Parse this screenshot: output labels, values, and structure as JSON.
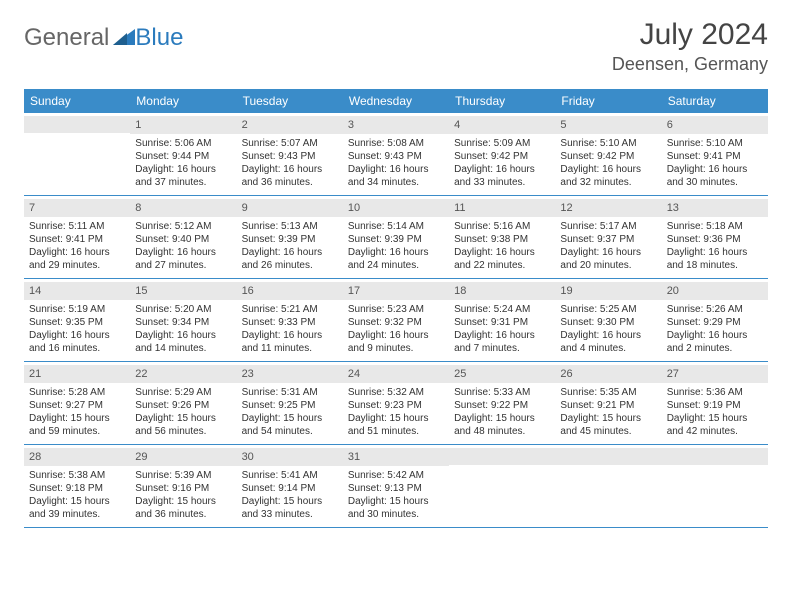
{
  "brand": {
    "part1": "General",
    "part2": "Blue"
  },
  "title": "July 2024",
  "location": "Deensen, Germany",
  "header_bg": "#3a8cc9",
  "day_names": [
    "Sunday",
    "Monday",
    "Tuesday",
    "Wednesday",
    "Thursday",
    "Friday",
    "Saturday"
  ],
  "weeks": [
    [
      {
        "day": "",
        "sunrise": "",
        "sunset": "",
        "daylight": ""
      },
      {
        "day": "1",
        "sunrise": "Sunrise: 5:06 AM",
        "sunset": "Sunset: 9:44 PM",
        "daylight": "Daylight: 16 hours and 37 minutes."
      },
      {
        "day": "2",
        "sunrise": "Sunrise: 5:07 AM",
        "sunset": "Sunset: 9:43 PM",
        "daylight": "Daylight: 16 hours and 36 minutes."
      },
      {
        "day": "3",
        "sunrise": "Sunrise: 5:08 AM",
        "sunset": "Sunset: 9:43 PM",
        "daylight": "Daylight: 16 hours and 34 minutes."
      },
      {
        "day": "4",
        "sunrise": "Sunrise: 5:09 AM",
        "sunset": "Sunset: 9:42 PM",
        "daylight": "Daylight: 16 hours and 33 minutes."
      },
      {
        "day": "5",
        "sunrise": "Sunrise: 5:10 AM",
        "sunset": "Sunset: 9:42 PM",
        "daylight": "Daylight: 16 hours and 32 minutes."
      },
      {
        "day": "6",
        "sunrise": "Sunrise: 5:10 AM",
        "sunset": "Sunset: 9:41 PM",
        "daylight": "Daylight: 16 hours and 30 minutes."
      }
    ],
    [
      {
        "day": "7",
        "sunrise": "Sunrise: 5:11 AM",
        "sunset": "Sunset: 9:41 PM",
        "daylight": "Daylight: 16 hours and 29 minutes."
      },
      {
        "day": "8",
        "sunrise": "Sunrise: 5:12 AM",
        "sunset": "Sunset: 9:40 PM",
        "daylight": "Daylight: 16 hours and 27 minutes."
      },
      {
        "day": "9",
        "sunrise": "Sunrise: 5:13 AM",
        "sunset": "Sunset: 9:39 PM",
        "daylight": "Daylight: 16 hours and 26 minutes."
      },
      {
        "day": "10",
        "sunrise": "Sunrise: 5:14 AM",
        "sunset": "Sunset: 9:39 PM",
        "daylight": "Daylight: 16 hours and 24 minutes."
      },
      {
        "day": "11",
        "sunrise": "Sunrise: 5:16 AM",
        "sunset": "Sunset: 9:38 PM",
        "daylight": "Daylight: 16 hours and 22 minutes."
      },
      {
        "day": "12",
        "sunrise": "Sunrise: 5:17 AM",
        "sunset": "Sunset: 9:37 PM",
        "daylight": "Daylight: 16 hours and 20 minutes."
      },
      {
        "day": "13",
        "sunrise": "Sunrise: 5:18 AM",
        "sunset": "Sunset: 9:36 PM",
        "daylight": "Daylight: 16 hours and 18 minutes."
      }
    ],
    [
      {
        "day": "14",
        "sunrise": "Sunrise: 5:19 AM",
        "sunset": "Sunset: 9:35 PM",
        "daylight": "Daylight: 16 hours and 16 minutes."
      },
      {
        "day": "15",
        "sunrise": "Sunrise: 5:20 AM",
        "sunset": "Sunset: 9:34 PM",
        "daylight": "Daylight: 16 hours and 14 minutes."
      },
      {
        "day": "16",
        "sunrise": "Sunrise: 5:21 AM",
        "sunset": "Sunset: 9:33 PM",
        "daylight": "Daylight: 16 hours and 11 minutes."
      },
      {
        "day": "17",
        "sunrise": "Sunrise: 5:23 AM",
        "sunset": "Sunset: 9:32 PM",
        "daylight": "Daylight: 16 hours and 9 minutes."
      },
      {
        "day": "18",
        "sunrise": "Sunrise: 5:24 AM",
        "sunset": "Sunset: 9:31 PM",
        "daylight": "Daylight: 16 hours and 7 minutes."
      },
      {
        "day": "19",
        "sunrise": "Sunrise: 5:25 AM",
        "sunset": "Sunset: 9:30 PM",
        "daylight": "Daylight: 16 hours and 4 minutes."
      },
      {
        "day": "20",
        "sunrise": "Sunrise: 5:26 AM",
        "sunset": "Sunset: 9:29 PM",
        "daylight": "Daylight: 16 hours and 2 minutes."
      }
    ],
    [
      {
        "day": "21",
        "sunrise": "Sunrise: 5:28 AM",
        "sunset": "Sunset: 9:27 PM",
        "daylight": "Daylight: 15 hours and 59 minutes."
      },
      {
        "day": "22",
        "sunrise": "Sunrise: 5:29 AM",
        "sunset": "Sunset: 9:26 PM",
        "daylight": "Daylight: 15 hours and 56 minutes."
      },
      {
        "day": "23",
        "sunrise": "Sunrise: 5:31 AM",
        "sunset": "Sunset: 9:25 PM",
        "daylight": "Daylight: 15 hours and 54 minutes."
      },
      {
        "day": "24",
        "sunrise": "Sunrise: 5:32 AM",
        "sunset": "Sunset: 9:23 PM",
        "daylight": "Daylight: 15 hours and 51 minutes."
      },
      {
        "day": "25",
        "sunrise": "Sunrise: 5:33 AM",
        "sunset": "Sunset: 9:22 PM",
        "daylight": "Daylight: 15 hours and 48 minutes."
      },
      {
        "day": "26",
        "sunrise": "Sunrise: 5:35 AM",
        "sunset": "Sunset: 9:21 PM",
        "daylight": "Daylight: 15 hours and 45 minutes."
      },
      {
        "day": "27",
        "sunrise": "Sunrise: 5:36 AM",
        "sunset": "Sunset: 9:19 PM",
        "daylight": "Daylight: 15 hours and 42 minutes."
      }
    ],
    [
      {
        "day": "28",
        "sunrise": "Sunrise: 5:38 AM",
        "sunset": "Sunset: 9:18 PM",
        "daylight": "Daylight: 15 hours and 39 minutes."
      },
      {
        "day": "29",
        "sunrise": "Sunrise: 5:39 AM",
        "sunset": "Sunset: 9:16 PM",
        "daylight": "Daylight: 15 hours and 36 minutes."
      },
      {
        "day": "30",
        "sunrise": "Sunrise: 5:41 AM",
        "sunset": "Sunset: 9:14 PM",
        "daylight": "Daylight: 15 hours and 33 minutes."
      },
      {
        "day": "31",
        "sunrise": "Sunrise: 5:42 AM",
        "sunset": "Sunset: 9:13 PM",
        "daylight": "Daylight: 15 hours and 30 minutes."
      },
      {
        "day": "",
        "sunrise": "",
        "sunset": "",
        "daylight": ""
      },
      {
        "day": "",
        "sunrise": "",
        "sunset": "",
        "daylight": ""
      },
      {
        "day": "",
        "sunrise": "",
        "sunset": "",
        "daylight": ""
      }
    ]
  ]
}
